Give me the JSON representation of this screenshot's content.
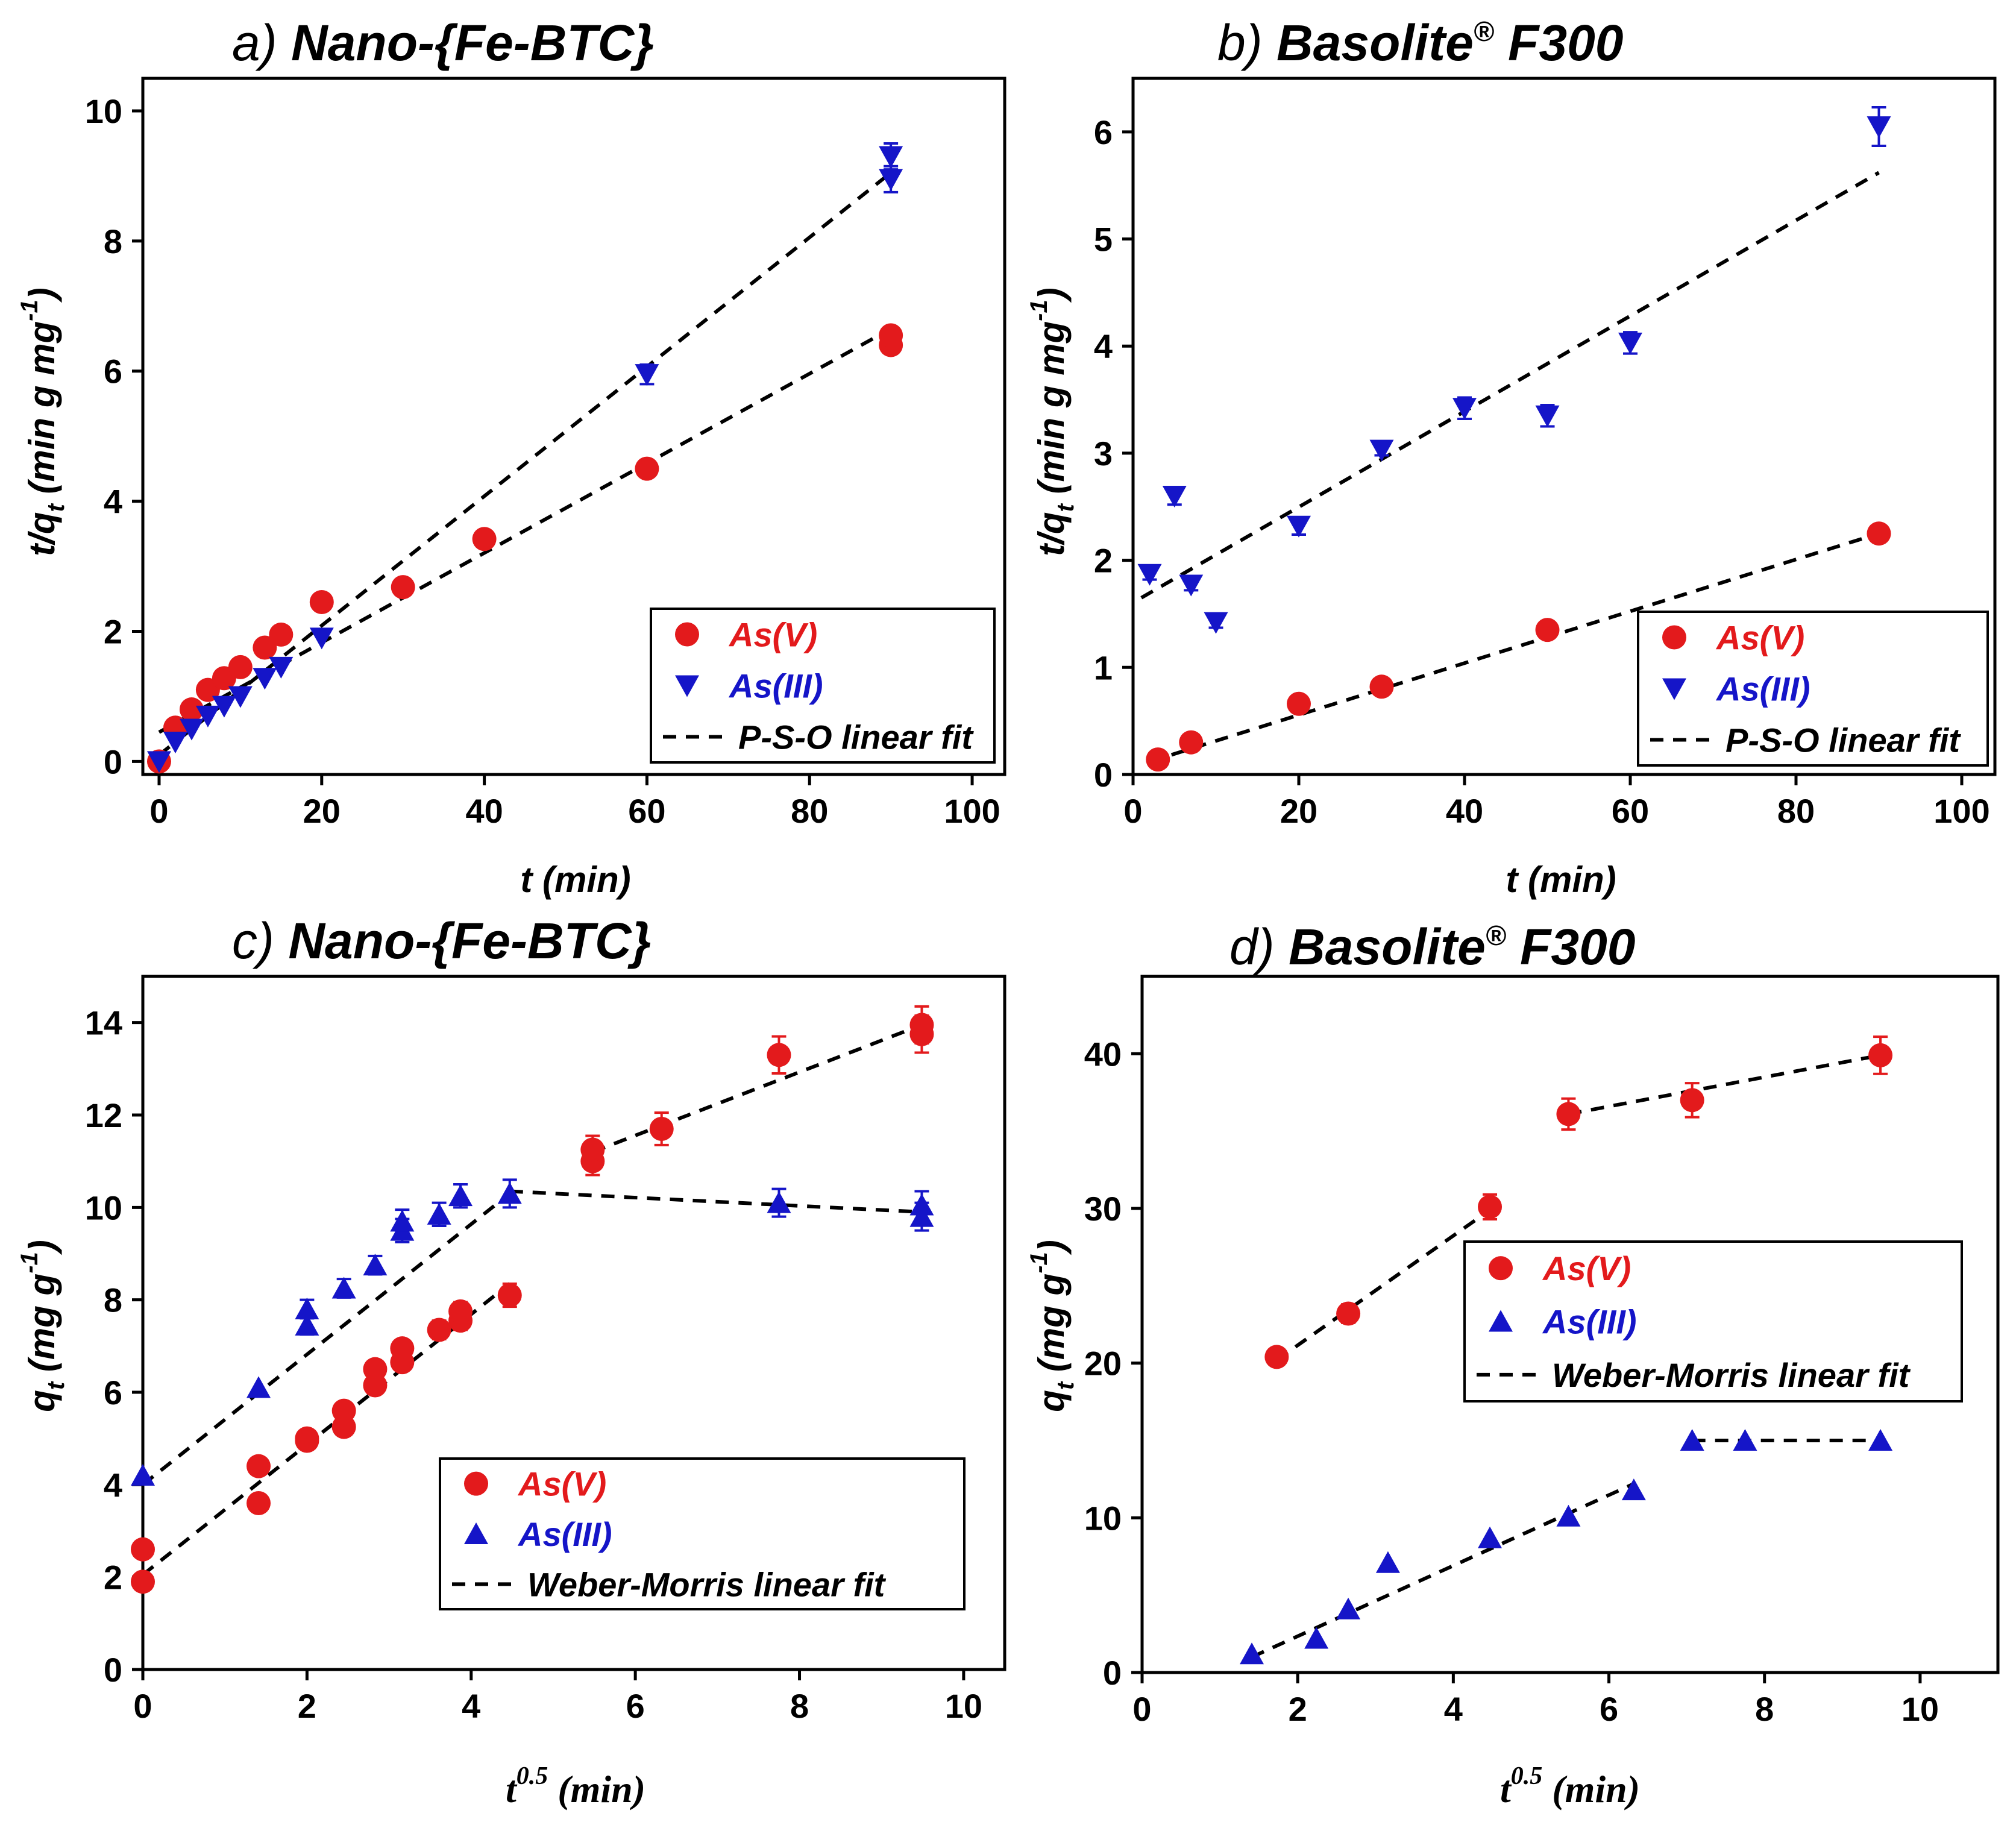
{
  "colors": {
    "as_v": "#e31a1c",
    "as_iii": "#1515c8",
    "fit": "#000000"
  },
  "chart_data": [
    {
      "type": "scatter",
      "panel": "a",
      "title_prefix": "a)",
      "title_main": "Nano-{Fe-BTC}",
      "title_sup": "",
      "title_suffix": "",
      "xlabel": "t (min)",
      "ylabel_main": "t/q",
      "ylabel_sub": "t",
      "ylabel_rest": " (min g mg",
      "ylabel_sup": "-1",
      "ylabel_end": ")",
      "xlim": [
        -2,
        104
      ],
      "ylim": [
        -0.2,
        10.5
      ],
      "xticks": [
        0,
        20,
        40,
        60,
        80,
        100
      ],
      "yticks": [
        0,
        2,
        4,
        6,
        8,
        10
      ],
      "legend_position": "bottom-right",
      "legend": [
        "As(V)",
        "As(III)",
        "P-S-O linear fit"
      ],
      "series": [
        {
          "name": "As(V)",
          "marker": "circle",
          "x": [
            0,
            2,
            4,
            6,
            8,
            10,
            13,
            15,
            20,
            30,
            40,
            60,
            90,
            90
          ],
          "y": [
            0,
            0.52,
            0.8,
            1.1,
            1.28,
            1.45,
            1.75,
            1.95,
            2.45,
            2.68,
            3.42,
            4.5,
            6.4,
            6.55
          ],
          "err": [
            0,
            0,
            0,
            0,
            0,
            0,
            0,
            0,
            0,
            0,
            0,
            0.1,
            0.1,
            0.1
          ]
        },
        {
          "name": "As(III)",
          "marker": "triangle-down",
          "x": [
            0,
            2,
            4,
            6,
            8,
            10,
            13,
            15,
            20,
            60,
            90,
            90
          ],
          "y": [
            0,
            0.3,
            0.5,
            0.7,
            0.85,
            1.0,
            1.28,
            1.45,
            1.9,
            5.95,
            8.95,
            9.3
          ],
          "err": [
            0,
            0,
            0,
            0,
            0,
            0,
            0,
            0,
            0,
            0.15,
            0.2,
            0.2
          ]
        }
      ],
      "fits": [
        {
          "name": "As(V) fit",
          "x": [
            0,
            90
          ],
          "y": [
            0.45,
            6.65
          ]
        },
        {
          "name": "As(III) fit",
          "x": [
            0,
            90
          ],
          "y": [
            0.1,
            9.05
          ]
        }
      ]
    },
    {
      "type": "scatter",
      "panel": "b",
      "title_prefix": "b)",
      "title_main": "Basolite",
      "title_sup": "®",
      "title_suffix": " F300",
      "xlabel": "t (min)",
      "ylabel_main": "t/q",
      "ylabel_sub": "t",
      "ylabel_rest": " (min g mg",
      "ylabel_sup": "-1",
      "ylabel_end": ")",
      "xlim": [
        0,
        104
      ],
      "ylim": [
        0,
        6.5
      ],
      "xticks": [
        0,
        20,
        40,
        60,
        80,
        100
      ],
      "yticks": [
        0,
        1,
        2,
        3,
        4,
        5,
        6
      ],
      "legend_position": "bottom-right",
      "legend": [
        "As(V)",
        "As(III)",
        "P-S-O linear fit"
      ],
      "series": [
        {
          "name": "As(V)",
          "marker": "circle",
          "x": [
            3,
            7,
            20,
            30,
            50,
            90
          ],
          "y": [
            0.14,
            0.3,
            0.66,
            0.82,
            1.35,
            2.25
          ],
          "err": [
            0,
            0,
            0,
            0,
            0,
            0
          ]
        },
        {
          "name": "As(III)",
          "marker": "triangle-down",
          "x": [
            2,
            5,
            7,
            10,
            20,
            30,
            40,
            50,
            60,
            90
          ],
          "y": [
            1.87,
            2.6,
            1.77,
            1.42,
            2.32,
            3.03,
            3.42,
            3.35,
            4.03,
            6.05
          ],
          "err": [
            0.05,
            0.08,
            0.05,
            0.05,
            0.08,
            0.05,
            0.1,
            0.1,
            0.1,
            0.18
          ]
        }
      ],
      "fits": [
        {
          "name": "As(V) fit",
          "x": [
            2,
            90
          ],
          "y": [
            0.12,
            2.25
          ]
        },
        {
          "name": "As(III) fit",
          "x": [
            1,
            90
          ],
          "y": [
            1.65,
            5.62
          ]
        }
      ]
    },
    {
      "type": "scatter",
      "panel": "c",
      "title_prefix": "c)",
      "title_main": "Nano-{Fe-BTC}",
      "title_sup": "",
      "title_suffix": "",
      "xlabel_main": "t",
      "xlabel_sup": "0.5",
      "xlabel_rest": " (min)",
      "ylabel_main": "q",
      "ylabel_sub": "t",
      "ylabel_rest": " (mg g",
      "ylabel_sup": "-1",
      "ylabel_end": ")",
      "xlim": [
        0,
        10.5
      ],
      "ylim": [
        0,
        15
      ],
      "xticks": [
        0,
        2,
        4,
        6,
        8,
        10
      ],
      "yticks": [
        0,
        2,
        4,
        6,
        8,
        10,
        12,
        14
      ],
      "legend_position": "bottom-right",
      "legend": [
        "As(V)",
        "As(III)",
        "Weber-Morris linear fit"
      ],
      "series": [
        {
          "name": "As(V)",
          "marker": "circle",
          "x": [
            0,
            0,
            1.41,
            1.41,
            2,
            2,
            2.45,
            2.45,
            2.83,
            2.83,
            3.16,
            3.16,
            3.61,
            3.87,
            3.87,
            4.47,
            5.48,
            5.48,
            6.32,
            7.75,
            9.49,
            9.49
          ],
          "y": [
            1.9,
            2.6,
            3.6,
            4.4,
            4.95,
            5.0,
            5.25,
            5.6,
            6.15,
            6.5,
            6.65,
            6.95,
            7.35,
            7.55,
            7.75,
            8.1,
            11.0,
            11.25,
            11.7,
            13.3,
            13.75,
            13.95
          ],
          "err": [
            0,
            0,
            0,
            0,
            0,
            0,
            0,
            0,
            0,
            0,
            0,
            0,
            0.2,
            0.2,
            0.2,
            0.25,
            0.3,
            0.3,
            0.35,
            0.4,
            0.4,
            0.4
          ]
        },
        {
          "name": "As(III)",
          "marker": "triangle-up",
          "x": [
            0,
            1.41,
            2,
            2,
            2.45,
            2.83,
            3.16,
            3.16,
            3.61,
            3.87,
            4.47,
            7.75,
            9.49,
            9.49
          ],
          "y": [
            4.2,
            6.1,
            7.45,
            7.8,
            8.25,
            8.75,
            9.5,
            9.7,
            9.85,
            10.25,
            10.3,
            10.1,
            9.8,
            10.05
          ],
          "err": [
            0,
            0,
            0.2,
            0.2,
            0.2,
            0.2,
            0.25,
            0.25,
            0.25,
            0.25,
            0.3,
            0.3,
            0.3,
            0.3
          ]
        }
      ],
      "fits": [
        {
          "name": "As(V) fit 1",
          "x": [
            0,
            4.47
          ],
          "y": [
            2.05,
            8.35
          ]
        },
        {
          "name": "As(V) fit 2",
          "x": [
            5.48,
            9.49
          ],
          "y": [
            11.2,
            13.95
          ]
        },
        {
          "name": "As(III) fit 1",
          "x": [
            0,
            4.47
          ],
          "y": [
            4.0,
            10.3
          ]
        },
        {
          "name": "As(III) fit 2",
          "x": [
            4.47,
            9.49
          ],
          "y": [
            10.35,
            9.9
          ]
        }
      ]
    },
    {
      "type": "scatter",
      "panel": "d",
      "title_prefix": "d)",
      "title_main": "Basolite",
      "title_sup": "®",
      "title_suffix": " F300",
      "xlabel_main": "t",
      "xlabel_sup": "0.5",
      "xlabel_rest": " (min)",
      "ylabel_main": "q",
      "ylabel_sub": "t",
      "ylabel_rest": " (mg g",
      "ylabel_sup": "-1",
      "ylabel_end": ")",
      "xlim": [
        0,
        11
      ],
      "ylim": [
        0,
        45
      ],
      "xticks": [
        0,
        2,
        4,
        6,
        8,
        10
      ],
      "yticks": [
        0,
        10,
        20,
        30,
        40
      ],
      "legend_position": "top-right",
      "legend": [
        "As(V)",
        "As(III)",
        "Weber-Morris linear fit"
      ],
      "series": [
        {
          "name": "As(V)",
          "marker": "circle",
          "x": [
            1.73,
            2.65,
            4.47,
            5.48,
            7.07,
            9.49
          ],
          "y": [
            20.4,
            23.2,
            30.1,
            36.1,
            37.0,
            39.9
          ],
          "err": [
            0.5,
            0.6,
            0.8,
            1.0,
            1.1,
            1.2
          ]
        },
        {
          "name": "As(III)",
          "marker": "triangle-up",
          "x": [
            1.41,
            2.24,
            2.65,
            3.16,
            4.47,
            5.48,
            6.32,
            7.07,
            7.75,
            9.49
          ],
          "y": [
            1.2,
            2.2,
            4.1,
            7.1,
            8.7,
            10.1,
            11.8,
            15.0,
            15.0,
            15.0
          ],
          "err": [
            0,
            0,
            0,
            0,
            0,
            0,
            0,
            0,
            0,
            0
          ]
        }
      ],
      "fits": [
        {
          "name": "As(V) fit 1",
          "x": [
            1.73,
            4.47
          ],
          "y": [
            20.2,
            29.9
          ]
        },
        {
          "name": "As(V) fit 2",
          "x": [
            5.48,
            9.49
          ],
          "y": [
            36.1,
            39.9
          ]
        },
        {
          "name": "As(III) fit 1",
          "x": [
            1.41,
            6.32
          ],
          "y": [
            1.0,
            12.2
          ]
        },
        {
          "name": "As(III) fit 2",
          "x": [
            7.07,
            9.49
          ],
          "y": [
            15.0,
            15.0
          ]
        }
      ]
    }
  ]
}
